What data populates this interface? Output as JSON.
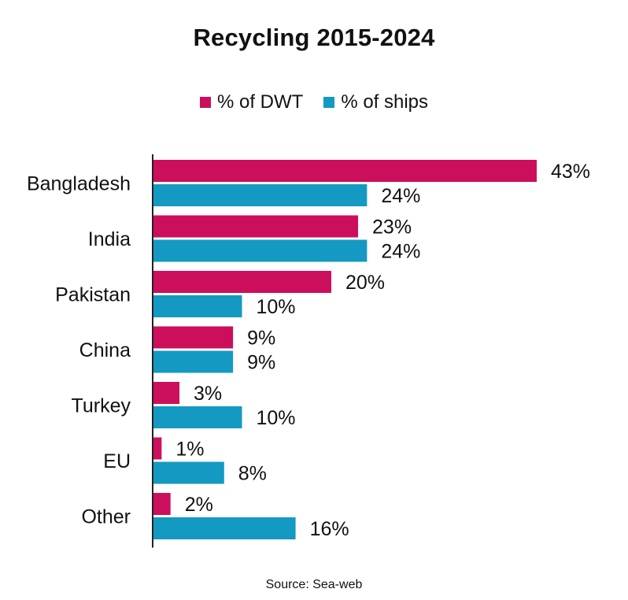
{
  "colors": {
    "dwt": "#CC0F5C",
    "ships": "#1499C2",
    "axis": "#222222",
    "text": "#111111"
  },
  "chart_data": {
    "type": "bar",
    "orientation": "horizontal",
    "title": "Recycling 2015-2024",
    "categories": [
      "Bangladesh",
      "India",
      "Pakistan",
      "China",
      "Turkey",
      "EU",
      "Other"
    ],
    "series": [
      {
        "name": "% of DWT",
        "color": "#CC0F5C",
        "values": [
          43,
          23,
          20,
          9,
          3,
          1,
          2
        ],
        "labels": [
          "43%",
          "23%",
          "20%",
          "9%",
          "3%",
          "1%",
          "2%"
        ]
      },
      {
        "name": "% of ships",
        "color": "#1499C2",
        "values": [
          24,
          24,
          10,
          9,
          10,
          8,
          16
        ],
        "labels": [
          "24%",
          "24%",
          "10%",
          "9%",
          "10%",
          "8%",
          "16%"
        ]
      }
    ],
    "xlim": [
      0,
      43
    ],
    "grid": false,
    "legend_position": "top-center",
    "source": "Source: Sea-web"
  }
}
